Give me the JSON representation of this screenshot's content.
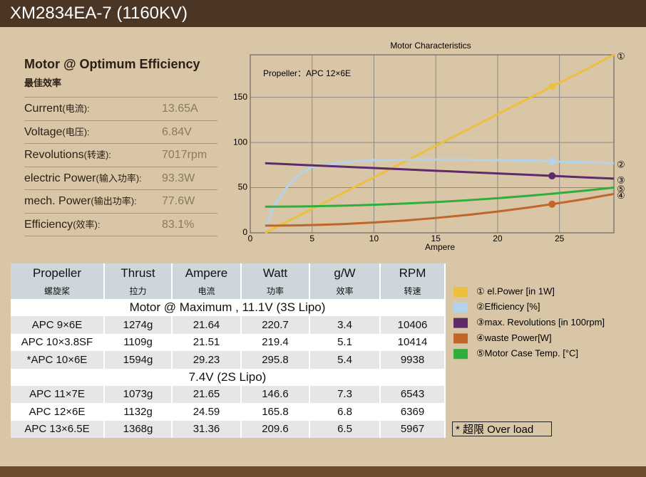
{
  "header": {
    "title": "XM2834EA-7 (1160KV)"
  },
  "specs": {
    "title": "Motor @ Optimum Efficiency",
    "subtitle": "最佳效率",
    "rows": [
      {
        "label": "Current",
        "note": "(电流):",
        "value": "13.65A"
      },
      {
        "label": "Voltage",
        "note": "(电压):",
        "value": "6.84V"
      },
      {
        "label": "Revolutions",
        "note": "(转速):",
        "value": "7017rpm"
      },
      {
        "label": "electric Power",
        "note": "(输入功率):",
        "value": "93.3W"
      },
      {
        "label": "mech. Power",
        "note": "(输出功率):",
        "value": "77.6W"
      },
      {
        "label": "Efficiency",
        "note": "(效率):",
        "value": "83.1%"
      }
    ]
  },
  "chart_data": {
    "type": "line",
    "title": "Motor Characteristics",
    "x_label": "Ampere",
    "annotation": "Propeller：APC 12×6E",
    "x": [
      1.2,
      2,
      3,
      4,
      5,
      7.5,
      10,
      12.5,
      15,
      17.5,
      20,
      22.5,
      24.4,
      27,
      29.4
    ],
    "xlim": [
      0,
      29.4
    ],
    "ylim": [
      0,
      197
    ],
    "xticks": [
      0,
      5,
      10,
      15,
      20,
      25
    ],
    "yticks": [
      0,
      50,
      100,
      150
    ],
    "grid": true,
    "marker_x": 24.4,
    "series": [
      {
        "name": "① el.Power [in 1W]",
        "tag": "①",
        "color": "#ecc03c",
        "markers": true,
        "values": [
          0,
          5.6,
          12.6,
          19.6,
          26.5,
          44,
          61.5,
          79,
          96.4,
          113.9,
          131.3,
          148.8,
          162,
          179.8,
          197
        ]
      },
      {
        "name": "②Efficiency [%]",
        "tag": "②",
        "color": "#b3d3ec",
        "markers": true,
        "values": [
          5,
          32,
          51,
          65,
          73,
          78,
          80.5,
          81,
          81,
          81,
          80.5,
          80,
          79,
          78,
          77
        ]
      },
      {
        "name": "③max. Revolutions [in 100rpm]",
        "tag": "③",
        "color": "#5e2a6a",
        "markers": true,
        "values": [
          77,
          76.5,
          75.9,
          75.3,
          74.7,
          73.2,
          71.7,
          70.2,
          68.7,
          67.2,
          65.7,
          64.2,
          63,
          61.4,
          60
        ]
      },
      {
        "name": "④waste Power[W]",
        "tag": "④",
        "color": "#c0662a",
        "markers": true,
        "values": [
          8,
          8,
          8.1,
          8.3,
          8.6,
          9.7,
          11.4,
          13.6,
          16.4,
          19.7,
          23.5,
          28,
          31.7,
          37.2,
          43
        ]
      },
      {
        "name": "⑤Motor Case Temp. [°C]",
        "tag": "⑤",
        "color": "#2fae3c",
        "markers": false,
        "values": [
          29,
          29,
          29.1,
          29.2,
          29.4,
          30,
          31,
          32.4,
          34,
          36,
          38.3,
          41,
          43.2,
          46.6,
          50
        ]
      }
    ]
  },
  "table": {
    "columns": [
      {
        "name": "Propeller",
        "sub": "螺旋桨"
      },
      {
        "name": "Thrust",
        "sub": "拉力"
      },
      {
        "name": "Ampere",
        "sub": "电流"
      },
      {
        "name": "Watt",
        "sub": "功率"
      },
      {
        "name": "g/W",
        "sub": "效率"
      },
      {
        "name": "RPM",
        "sub": "转速"
      }
    ],
    "sections": [
      {
        "title": "Motor @ Maximum , 11.1V (3S Lipo)",
        "rows": [
          [
            "APC 9×6E",
            "1274g",
            "21.64",
            "220.7",
            "3.4",
            "10406"
          ],
          [
            "APC 10×3.8SF",
            "1109g",
            "21.51",
            "219.4",
            "5.1",
            "10414"
          ],
          [
            "*APC 10×6E",
            "1594g",
            "29.23",
            "295.8",
            "5.4",
            "9938"
          ]
        ]
      },
      {
        "title": "7.4V (2S Lipo)",
        "rows": [
          [
            "APC 11×7E",
            "1073g",
            "21.65",
            "146.6",
            "7.3",
            "6543"
          ],
          [
            "APC 12×6E",
            "1132g",
            "24.59",
            "165.8",
            "6.8",
            "6369"
          ],
          [
            "APC 13×6.5E",
            "1368g",
            "31.36",
            "209.6",
            "6.5",
            "5967"
          ]
        ]
      }
    ]
  },
  "footnote": "* 超限 Over load"
}
